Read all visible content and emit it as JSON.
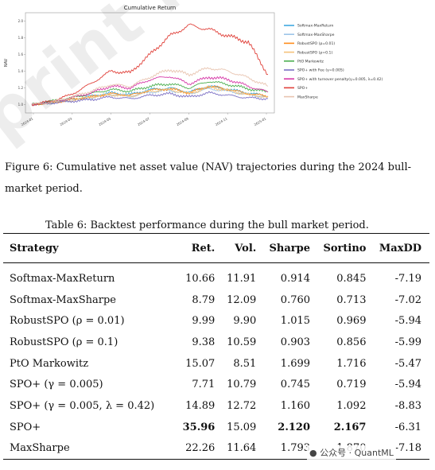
{
  "chart_data": {
    "type": "line",
    "title": "Cumulative Return",
    "ylabel": "NAV",
    "xlabel": "",
    "x_ticks": [
      "2024-01",
      "2024-03",
      "2024-05",
      "2024-07",
      "2024-09",
      "2024-11",
      "2025-01"
    ],
    "y_ticks": [
      "1.0",
      "1.2",
      "1.4",
      "1.6",
      "1.8",
      "2.0"
    ],
    "ylim": [
      0.9,
      2.1
    ],
    "grid": false,
    "legend_position": "right",
    "series": [
      {
        "name": "Softmax-MaxReturn",
        "color": "#3fa9e0",
        "values": [
          1.0,
          1.03,
          1.06,
          1.1,
          1.14,
          1.12,
          1.18,
          1.2,
          1.15,
          1.22,
          1.18,
          1.14,
          1.1
        ]
      },
      {
        "name": "Softmax-MaxSharpe",
        "color": "#9cc4e8",
        "values": [
          1.0,
          1.02,
          1.05,
          1.08,
          1.12,
          1.1,
          1.15,
          1.17,
          1.13,
          1.19,
          1.16,
          1.12,
          1.09
        ]
      },
      {
        "name": "RobustSPO (ρ=0.01)",
        "color": "#ff8c1a",
        "values": [
          1.0,
          1.02,
          1.06,
          1.09,
          1.13,
          1.11,
          1.17,
          1.19,
          1.14,
          1.22,
          1.18,
          1.13,
          1.1
        ]
      },
      {
        "name": "RobustSPO (ρ=0.1)",
        "color": "#f5c27a",
        "values": [
          1.0,
          1.02,
          1.05,
          1.09,
          1.12,
          1.1,
          1.16,
          1.18,
          1.13,
          1.21,
          1.17,
          1.12,
          1.09
        ]
      },
      {
        "name": "PtO Markowitz",
        "color": "#4caf50",
        "values": [
          1.0,
          1.04,
          1.08,
          1.13,
          1.18,
          1.16,
          1.22,
          1.25,
          1.2,
          1.28,
          1.24,
          1.19,
          1.15
        ]
      },
      {
        "name": "SPO+ with Fee (γ=0.005)",
        "color": "#7b6fc4",
        "values": [
          1.0,
          1.02,
          1.04,
          1.06,
          1.09,
          1.07,
          1.11,
          1.13,
          1.09,
          1.14,
          1.11,
          1.08,
          1.07
        ]
      },
      {
        "name": "SPO+ with turnover penalty(γ=0.005, λ=0.42)",
        "color": "#d63aa8",
        "values": [
          1.0,
          1.03,
          1.08,
          1.14,
          1.22,
          1.2,
          1.3,
          1.34,
          1.25,
          1.33,
          1.3,
          1.22,
          1.15
        ]
      },
      {
        "name": "SPO+",
        "color": "#e0413a",
        "values": [
          1.0,
          1.04,
          1.12,
          1.25,
          1.4,
          1.38,
          1.6,
          1.82,
          1.95,
          1.9,
          1.82,
          1.75,
          1.36
        ]
      },
      {
        "name": "MaxSharpe",
        "color": "#e8c4b0",
        "values": [
          1.0,
          1.03,
          1.09,
          1.16,
          1.24,
          1.22,
          1.33,
          1.42,
          1.36,
          1.44,
          1.4,
          1.32,
          1.22
        ]
      }
    ]
  },
  "figure": {
    "caption": "Figure 6: Cumulative net asset value (NAV) trajectories during the 2024 bull-market period."
  },
  "table": {
    "caption": "Table 6: Backtest performance during the bull market period.",
    "headers": [
      "Strategy",
      "Ret.",
      "Vol.",
      "Sharpe",
      "Sortino",
      "MaxDD"
    ],
    "rows": [
      [
        "Softmax-MaxReturn",
        "10.66",
        "11.91",
        "0.914",
        "0.845",
        "-7.19"
      ],
      [
        "Softmax-MaxSharpe",
        "8.79",
        "12.09",
        "0.760",
        "0.713",
        "-7.02"
      ],
      [
        "RobustSPO (ρ = 0.01)",
        "9.99",
        "9.90",
        "1.015",
        "0.969",
        "-5.94"
      ],
      [
        "RobustSPO (ρ = 0.1)",
        "9.38",
        "10.59",
        "0.903",
        "0.856",
        "-5.99"
      ],
      [
        "PtO Markowitz",
        "15.07",
        "8.51",
        "1.699",
        "1.716",
        "-5.47"
      ],
      [
        "SPO+ (γ = 0.005)",
        "7.71",
        "10.79",
        "0.745",
        "0.719",
        "-5.94"
      ],
      [
        "SPO+ (γ = 0.005,  λ = 0.42)",
        "14.89",
        "12.72",
        "1.160",
        "1.092",
        "-8.83"
      ],
      [
        "SPO+",
        "35.96",
        "15.09",
        "2.120",
        "2.167",
        "-6.31"
      ],
      [
        "MaxSharpe",
        "22.26",
        "11.64",
        "1.793",
        "1.870",
        "-7.18"
      ]
    ],
    "bold_cells": [
      [
        7,
        1
      ],
      [
        7,
        3
      ],
      [
        7,
        4
      ]
    ]
  },
  "watermark": {
    "text": "print not peer reviewed"
  },
  "wechat_tag": {
    "icon": "wechat-icon",
    "text": "公众号 · QuantML"
  }
}
